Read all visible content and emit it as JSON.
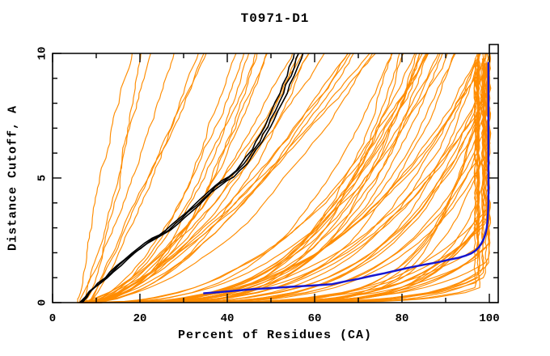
{
  "chart_data": {
    "type": "line",
    "title": "T0971-D1",
    "xlabel": "Percent of Residues (CA)",
    "ylabel": "Distance Cutoff, A",
    "xlim": [
      0,
      102
    ],
    "ylim": [
      0,
      10
    ],
    "x_ticks_major": [
      0,
      20,
      40,
      60,
      80,
      100
    ],
    "x_ticks_minor": [
      10,
      30,
      50,
      70,
      90
    ],
    "y_ticks_major": [
      0,
      5,
      10
    ],
    "y_ticks_minor": [
      1,
      2,
      3,
      4,
      6,
      7,
      8,
      9
    ],
    "grid": false,
    "legend": "none",
    "background_color": "#ffffff",
    "frame_color": "#000000",
    "series": {
      "blue_highlight_model": {
        "color": "#1717d0",
        "width": 2.5,
        "points": [
          [
            34.5,
            0.37
          ],
          [
            38,
            0.42
          ],
          [
            42,
            0.48
          ],
          [
            46,
            0.54
          ],
          [
            50,
            0.58
          ],
          [
            54,
            0.63
          ],
          [
            58,
            0.67
          ],
          [
            61,
            0.7
          ],
          [
            64,
            0.74
          ],
          [
            67,
            0.85
          ],
          [
            70,
            0.95
          ],
          [
            73,
            1.07
          ],
          [
            76,
            1.18
          ],
          [
            79,
            1.3
          ],
          [
            81,
            1.38
          ],
          [
            83,
            1.45
          ],
          [
            85,
            1.52
          ],
          [
            87,
            1.58
          ],
          [
            89,
            1.65
          ],
          [
            91,
            1.73
          ],
          [
            93,
            1.8
          ],
          [
            94.5,
            1.88
          ],
          [
            95.8,
            1.97
          ],
          [
            96.8,
            2.08
          ],
          [
            97.6,
            2.22
          ],
          [
            98.2,
            2.38
          ],
          [
            98.7,
            2.55
          ],
          [
            99.1,
            2.75
          ],
          [
            99.4,
            3.0
          ],
          [
            99.6,
            3.3
          ],
          [
            99.7,
            3.6
          ],
          [
            99.8,
            4.0
          ],
          [
            99.8,
            9.65
          ]
        ]
      },
      "black_reference_bundle": {
        "color": "#000000",
        "width": 1.6,
        "bundle_offsets": [
          -0.7,
          0,
          0.7
        ],
        "jitter": 0.5,
        "points": [
          [
            6.5,
            0
          ],
          [
            7.5,
            0.22
          ],
          [
            8.6,
            0.45
          ],
          [
            9.6,
            0.6
          ],
          [
            10.8,
            0.78
          ],
          [
            12.2,
            1.0
          ],
          [
            13.6,
            1.22
          ],
          [
            15.2,
            1.48
          ],
          [
            16.8,
            1.72
          ],
          [
            18.4,
            1.98
          ],
          [
            20,
            2.18
          ],
          [
            21.6,
            2.38
          ],
          [
            23.2,
            2.58
          ],
          [
            24.8,
            2.72
          ],
          [
            26.4,
            2.9
          ],
          [
            28,
            3.15
          ],
          [
            29.6,
            3.4
          ],
          [
            31.2,
            3.65
          ],
          [
            32.8,
            3.9
          ],
          [
            34.4,
            4.15
          ],
          [
            36,
            4.42
          ],
          [
            37.6,
            4.68
          ],
          [
            39.2,
            4.88
          ],
          [
            40.8,
            5.05
          ],
          [
            42.4,
            5.3
          ],
          [
            43.8,
            5.58
          ],
          [
            45,
            5.85
          ],
          [
            46.2,
            6.15
          ],
          [
            47.3,
            6.45
          ],
          [
            48.3,
            6.75
          ],
          [
            49.2,
            7.05
          ],
          [
            50.1,
            7.35
          ],
          [
            51,
            7.7
          ],
          [
            51.9,
            8.05
          ],
          [
            52.8,
            8.4
          ],
          [
            53.6,
            8.75
          ],
          [
            54.4,
            9.1
          ],
          [
            55.2,
            9.45
          ],
          [
            55.9,
            9.8
          ],
          [
            56.3,
            10
          ]
        ]
      },
      "orange_models": {
        "color": "#ff8c00",
        "width": 1.15,
        "seed": 20180601,
        "count_total": 90,
        "x_clamp": [
          96.5,
          100.2
        ],
        "y_top": [
          9.2,
          10.0
        ],
        "groups": [
          {
            "label": "steep-poor-models",
            "count": 7,
            "x_start": [
              5.5,
              8.5
            ],
            "x_extent": [
              12,
              27
            ],
            "shape": [
              0.9,
              1.4
            ],
            "wiggle": 0.9
          },
          {
            "label": "mid-models",
            "count": 20,
            "x_start": [
              5.5,
              9.0
            ],
            "x_extent": [
              34,
              72
            ],
            "shape": [
              1.3,
              2.3
            ],
            "wiggle": 1.1
          },
          {
            "label": "late-rise-models",
            "count": 30,
            "x_start": [
              6.0,
              9.5
            ],
            "x_extent": [
              70,
              98
            ],
            "shape": [
              2.4,
              4.5
            ],
            "wiggle": 1.1
          },
          {
            "label": "floor-models",
            "count": 33,
            "x_start": [
              6.0,
              10.0
            ],
            "x_extent": [
              88,
              135
            ],
            "shape": [
              4.5,
              9.0
            ],
            "wiggle": 0.8
          }
        ]
      }
    }
  }
}
